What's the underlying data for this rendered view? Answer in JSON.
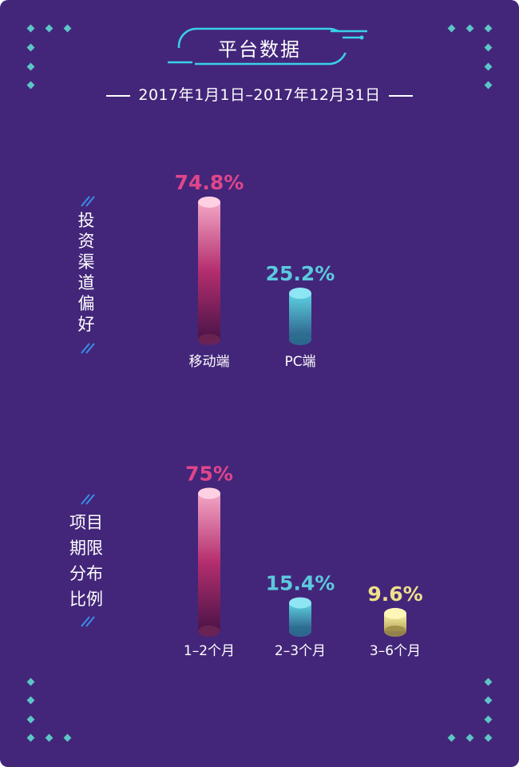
{
  "header": {
    "title": "平台数据",
    "date_range": "2017年1月1日–2017年12月31日"
  },
  "sections": [
    {
      "label_lines": [
        "投",
        "资",
        "渠",
        "道",
        "偏",
        "好"
      ]
    },
    {
      "label_lines": [
        "项目",
        "期限",
        "分布",
        "比例"
      ]
    }
  ],
  "colors": {
    "background": "#43267a",
    "pink": "#e0468a",
    "cyan": "#5cc9de",
    "yellow": "#efe08a",
    "diamond": "#5cc6c6",
    "title_border": "#3ad0e8"
  },
  "chart_data": [
    {
      "type": "bar",
      "title": "投资渠道偏好",
      "categories": [
        "移动端",
        "PC端"
      ],
      "values": [
        74.8,
        25.2
      ],
      "value_labels": [
        "74.8%",
        "25.2%"
      ],
      "bar_colors": [
        "pink",
        "cyan"
      ],
      "ylim": [
        0,
        100
      ],
      "grid": false
    },
    {
      "type": "bar",
      "title": "项目期限分布比例",
      "categories": [
        "1–2个月",
        "2–3个月",
        "3–6个月"
      ],
      "values": [
        75,
        15.4,
        9.6
      ],
      "value_labels": [
        "75%",
        "15.4%",
        "9.6%"
      ],
      "bar_colors": [
        "pink",
        "cyan",
        "yellow"
      ],
      "ylim": [
        0,
        100
      ],
      "grid": false
    }
  ]
}
